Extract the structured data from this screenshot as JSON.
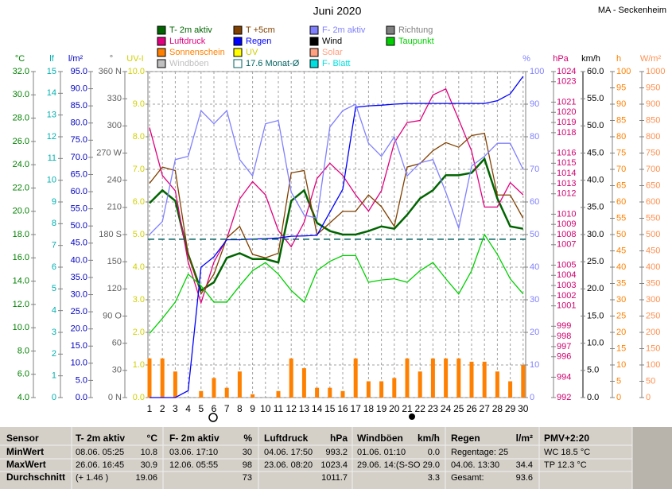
{
  "chart_data": {
    "type": "line",
    "title": "Juni 2020",
    "station": "MA - Seckenheim",
    "categories": [
      1,
      2,
      3,
      4,
      5,
      6,
      7,
      8,
      9,
      10,
      11,
      12,
      13,
      14,
      15,
      16,
      17,
      18,
      19,
      20,
      21,
      22,
      23,
      24,
      25,
      26,
      27,
      28,
      29,
      30
    ],
    "axes": [
      {
        "unit": "°C",
        "color": "#008000",
        "lim": [
          4,
          32
        ],
        "ticks": [
          {
            "value": 4,
            "label": "4.0"
          },
          {
            "value": 6,
            "label": "6.0"
          },
          {
            "value": 8,
            "label": "8.0"
          },
          {
            "value": 10,
            "label": "10.0"
          },
          {
            "value": 12,
            "label": "12.0"
          },
          {
            "value": 14,
            "label": "14.0"
          },
          {
            "value": 16,
            "label": "16.0"
          },
          {
            "value": 18,
            "label": "18.0"
          },
          {
            "value": 20,
            "label": "20.0"
          },
          {
            "value": 22,
            "label": "22.0"
          },
          {
            "value": 24,
            "label": "24.0"
          },
          {
            "value": 26,
            "label": "26.0"
          },
          {
            "value": 28,
            "label": "28.0"
          },
          {
            "value": 30,
            "label": "30.0"
          },
          {
            "value": 32,
            "label": "32.0"
          }
        ]
      },
      {
        "unit": "lf",
        "color": "#00b0b0",
        "lim": [
          0,
          15
        ],
        "ticks": [
          0,
          1,
          2,
          3,
          4,
          5,
          6,
          7,
          8,
          9,
          10,
          11,
          12,
          13,
          14,
          15
        ]
      },
      {
        "unit": "l/m²",
        "color": "#0000c0",
        "lim": [
          0,
          95
        ],
        "ticks": [
          {
            "value": 0,
            "label": "0.0"
          },
          {
            "value": 5,
            "label": "5.0"
          },
          {
            "value": 10,
            "label": "10.0"
          },
          {
            "value": 15,
            "label": "15.0"
          },
          {
            "value": 20,
            "label": "20.0"
          },
          {
            "value": 25,
            "label": "25.0"
          },
          {
            "value": 30,
            "label": "30.0"
          },
          {
            "value": 35,
            "label": "35.0"
          },
          {
            "value": 40,
            "label": "40.0"
          },
          {
            "value": 45,
            "label": "45.0"
          },
          {
            "value": 50,
            "label": "50.0"
          },
          {
            "value": 55,
            "label": "55.0"
          },
          {
            "value": 60,
            "label": "60.0"
          },
          {
            "value": 65,
            "label": "65.0"
          },
          {
            "value": 70,
            "label": "70.0"
          },
          {
            "value": 75,
            "label": "75.0"
          },
          {
            "value": 80,
            "label": "80.0"
          },
          {
            "value": 85,
            "label": "85.0"
          },
          {
            "value": 90,
            "label": "90.0"
          },
          {
            "value": 95,
            "label": "95.0"
          }
        ]
      },
      {
        "unit": "°",
        "color": "#606060",
        "lim": [
          0,
          360
        ],
        "ticks": [
          {
            "value": 0,
            "label": "0 N"
          },
          30,
          60,
          {
            "value": 90,
            "label": "90 O"
          },
          120,
          150,
          {
            "value": 180,
            "label": "180 S"
          },
          210,
          240,
          {
            "value": 270,
            "label": "270 W"
          },
          300,
          330,
          {
            "value": 360,
            "label": "360 N"
          }
        ]
      },
      {
        "unit": "UV-I",
        "color": "#d0d000",
        "lim": [
          0,
          10
        ],
        "grid": true,
        "ticks": [
          {
            "value": 0,
            "label": "0.0"
          },
          {
            "value": 1,
            "label": "1.0"
          },
          {
            "value": 2,
            "label": "2.0"
          },
          {
            "value": 3,
            "label": "3.0"
          },
          {
            "value": 4,
            "label": "4.0"
          },
          {
            "value": 5,
            "label": "5.0"
          },
          {
            "value": 6,
            "label": "6.0"
          },
          {
            "value": 7,
            "label": "7.0"
          },
          {
            "value": 8,
            "label": "8.0"
          },
          {
            "value": 9,
            "label": "9.0"
          },
          {
            "value": 10,
            "label": "10.0"
          }
        ]
      },
      {
        "unit": "%",
        "color": "#8080ff",
        "lim": [
          0,
          100
        ],
        "ticks": [
          0,
          10,
          20,
          30,
          40,
          50,
          60,
          70,
          80,
          90,
          100
        ]
      },
      {
        "unit": "hPa",
        "color": "#d0006f",
        "lim": [
          992,
          1024
        ],
        "ticks": [
          992,
          994,
          996,
          997,
          998,
          999,
          1001,
          1002,
          1003,
          1004,
          1005,
          1007,
          1008,
          1009,
          1010,
          1012,
          1013,
          1014,
          1015,
          1016,
          1018,
          1019,
          1020,
          1021,
          1023,
          1024
        ]
      },
      {
        "unit": "km/h",
        "color": "#000000",
        "lim": [
          0,
          60
        ],
        "ticks": [
          {
            "value": 0,
            "label": "0.0"
          },
          {
            "value": 5,
            "label": "5.0"
          },
          {
            "value": 10,
            "label": "10.0"
          },
          {
            "value": 15,
            "label": "15.0"
          },
          {
            "value": 20,
            "label": "20.0"
          },
          {
            "value": 25,
            "label": "25.0"
          },
          {
            "value": 30,
            "label": "30.0"
          },
          {
            "value": 35,
            "label": "35.0"
          },
          {
            "value": 40,
            "label": "40.0"
          },
          {
            "value": 45,
            "label": "45.0"
          },
          {
            "value": 50,
            "label": "50.0"
          },
          {
            "value": 55,
            "label": "55.0"
          },
          {
            "value": 60,
            "label": "60.0"
          }
        ]
      },
      {
        "unit": "h",
        "color": "#ff8000",
        "lim": [
          0,
          100
        ],
        "ticks": [
          0,
          5,
          10,
          15,
          20,
          25,
          30,
          35,
          40,
          45,
          50,
          55,
          60,
          65,
          70,
          75,
          80,
          85,
          90,
          95,
          100
        ]
      },
      {
        "unit": "W/m²",
        "color": "#ff9050",
        "lim": [
          0,
          1000
        ],
        "ticks": [
          0,
          50,
          100,
          150,
          200,
          250,
          300,
          350,
          400,
          450,
          500,
          550,
          600,
          650,
          700,
          750,
          800,
          850,
          900,
          950,
          1000
        ]
      }
    ],
    "series": [
      {
        "name": "T- 2m aktiv",
        "color": "#006400",
        "axis": "°C",
        "width": 2.5,
        "values": [
          20.7,
          21.8,
          20.9,
          16.3,
          13.2,
          13.9,
          16.0,
          16.4,
          15.9,
          15.9,
          15.6,
          20.9,
          21.8,
          19.0,
          18.3,
          18.0,
          18.0,
          18.3,
          18.7,
          18.5,
          19.7,
          21.1,
          21.8,
          23.1,
          23.1,
          23.3,
          24.5,
          21.1,
          18.7,
          18.5
        ]
      },
      {
        "name": "Luftdruck",
        "color": "#e0007f",
        "axis": "hPa",
        "values": [
          1018.5,
          1013.8,
          1012.3,
          1005.3,
          1001.3,
          1005.3,
          1007.6,
          1011.5,
          1013.2,
          1011.9,
          1008.4,
          1006.8,
          1009.2,
          1013.5,
          1015.0,
          1013.8,
          1011.9,
          1010.3,
          1012.3,
          1017.0,
          1019.0,
          1019.2,
          1021.7,
          1022.3,
          1019.3,
          1016.2,
          1010.7,
          1010.7,
          1013.1,
          1011.9
        ]
      },
      {
        "name": "Sonnenschein",
        "color": "#ff8000",
        "axis": "h",
        "type": "bar",
        "values": [
          12,
          12,
          8,
          0,
          2,
          6,
          3,
          8,
          1,
          0,
          2,
          12,
          9,
          3,
          3,
          2,
          12,
          5,
          5,
          6,
          12,
          8,
          12,
          12,
          12,
          11,
          11,
          8,
          5,
          10
        ]
      },
      {
        "name": "Windböen",
        "color": "#c0c0c0"
      },
      {
        "name": "T +5cm",
        "color": "#804000",
        "axis": "°C",
        "values": [
          22.4,
          23.8,
          23.5,
          16.3,
          12.9,
          14.6,
          17.7,
          18.7,
          16.3,
          16.0,
          16.4,
          23.3,
          23.5,
          18.0,
          19.0,
          20.0,
          20.0,
          21.4,
          20.4,
          18.7,
          23.8,
          24.1,
          25.2,
          25.9,
          25.5,
          26.5,
          26.7,
          21.4,
          21.4,
          19.4
        ]
      },
      {
        "name": "Regen",
        "color": "#0000ff",
        "axis": "l/m²",
        "values": [
          0.0,
          0.0,
          0.0,
          2.0,
          38.0,
          41.0,
          46.0,
          46.0,
          46.2,
          46.3,
          46.5,
          47.0,
          47.1,
          47.3,
          54.0,
          60.7,
          84.6,
          85.0,
          85.2,
          85.5,
          85.7,
          85.7,
          85.7,
          85.7,
          85.7,
          85.7,
          85.7,
          86.5,
          88.5,
          93.6
        ]
      },
      {
        "name": "UV",
        "color": "#ffff00"
      },
      {
        "name": "17.6 Monat-Ø",
        "color": "#006060",
        "axis": "°C",
        "style": "dashed",
        "value": 17.6
      },
      {
        "name": "F- 2m aktiv",
        "color": "#8080ff",
        "axis": "%",
        "values": [
          50,
          54,
          73,
          74,
          88,
          84,
          88,
          73,
          68,
          84,
          85,
          63,
          56,
          55,
          83,
          88,
          90,
          78,
          74,
          80,
          68,
          72,
          73,
          63,
          52,
          71,
          74,
          78,
          78,
          70
        ]
      },
      {
        "name": "Wind",
        "color": "#000000"
      },
      {
        "name": "Solar",
        "color": "#ffa080"
      },
      {
        "name": "F- Blatt",
        "color": "#00e0e0"
      },
      {
        "name": "Richtung",
        "color": "#808080"
      },
      {
        "name": "Taupunkt",
        "color": "#00d000",
        "axis": "°C",
        "values": [
          9.5,
          10.8,
          12.2,
          14.6,
          13.6,
          12.2,
          12.2,
          13.6,
          14.9,
          15.6,
          14.6,
          13.2,
          12.2,
          14.9,
          15.7,
          16.2,
          16.2,
          13.9,
          14.1,
          14.2,
          13.9,
          14.9,
          15.6,
          14.2,
          12.9,
          14.9,
          18.0,
          16.3,
          14.2,
          12.9
        ]
      }
    ]
  },
  "table": {
    "header": [
      [
        "Sensor"
      ],
      [
        "T- 2m aktiv",
        "°C"
      ],
      [
        "F- 2m aktiv",
        "%"
      ],
      [
        "Luftdruck",
        "hPa"
      ],
      [
        "Windböen",
        "km/h"
      ],
      [
        "Regen",
        "l/m²"
      ],
      [
        "PMV+2:20"
      ]
    ],
    "rows": [
      [
        [
          "MinWert"
        ],
        [
          "08.06.  05:25",
          "10.8"
        ],
        [
          "03.06.  17:10",
          "30"
        ],
        [
          "04.06.  17:50",
          "993.2"
        ],
        [
          "01.06.  01:10",
          "0.0"
        ],
        [
          "Regentage: 25"
        ],
        [
          "WC 18.5 °C"
        ]
      ],
      [
        [
          "MaxWert"
        ],
        [
          "26.06.  16:45",
          "30.9"
        ],
        [
          "12.06.  05:55",
          "98"
        ],
        [
          "23.06.  08:20",
          "1023.4"
        ],
        [
          "29.06.  14:(S-SO",
          "29.0"
        ],
        [
          "04.06.  13:30",
          "34.4"
        ],
        [
          "TP 12.3 °C"
        ]
      ],
      [
        [
          "Durchschnitt"
        ],
        [
          "(+ 1.46 )",
          "19.06"
        ],
        [
          "",
          "73"
        ],
        [
          "",
          "1011.7"
        ],
        [
          "",
          "3.3"
        ],
        [
          "Gesamt:",
          "93.6"
        ]
      ]
    ]
  }
}
